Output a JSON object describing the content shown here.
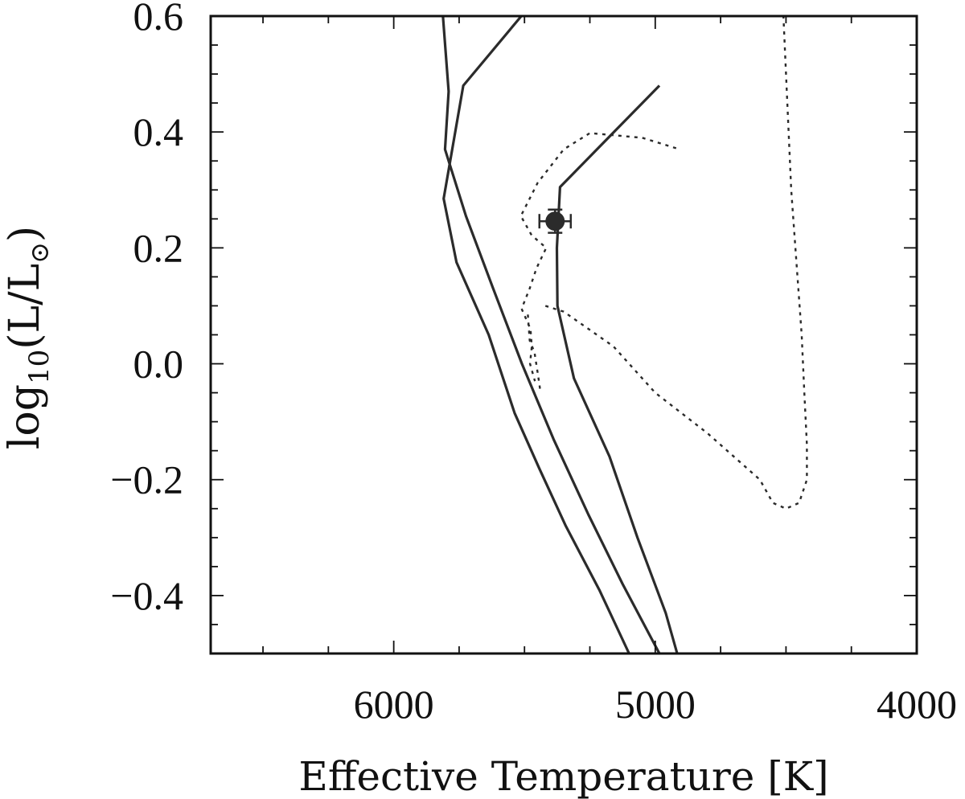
{
  "chart_data": {
    "type": "line",
    "xlabel": "Effective Temperature [K]",
    "ylabel": {
      "prefix": "log",
      "sub1": "10",
      "mid": "(L/L",
      "sub2": "⊙",
      "suffix": ")"
    },
    "xlim": [
      6700,
      4000
    ],
    "ylim": [
      -0.5,
      0.6
    ],
    "x_reversed": true,
    "x_ticks": [
      {
        "value": 6000,
        "label": "6000"
      },
      {
        "value": 5000,
        "label": "5000"
      },
      {
        "value": 4000,
        "label": "4000"
      }
    ],
    "y_ticks": [
      {
        "value": 0.6,
        "label": "0.6"
      },
      {
        "value": 0.4,
        "label": "0.4"
      },
      {
        "value": 0.2,
        "label": "0.2"
      },
      {
        "value": 0.0,
        "label": "0.0"
      },
      {
        "value": -0.2,
        "label": "−0.2"
      },
      {
        "value": -0.4,
        "label": "−0.4"
      }
    ],
    "x_minor_step": 250,
    "y_minor_step": 0.05,
    "grid": false,
    "legend": "none",
    "series": [
      {
        "style": "solid",
        "points": [
          [
            5812,
            0.6
          ],
          [
            5790,
            0.47
          ],
          [
            5804,
            0.37
          ],
          [
            5724,
            0.255
          ],
          [
            5620,
            0.13
          ],
          [
            5510,
            0.0
          ],
          [
            5389,
            -0.13
          ],
          [
            5256,
            -0.26
          ],
          [
            5125,
            -0.38
          ],
          [
            4984,
            -0.5
          ]
        ]
      },
      {
        "style": "solid",
        "points": [
          [
            5512,
            0.6
          ],
          [
            5734,
            0.48
          ],
          [
            5809,
            0.285
          ],
          [
            5760,
            0.175
          ],
          [
            5637,
            0.05
          ],
          [
            5538,
            -0.085
          ],
          [
            5444,
            -0.18
          ],
          [
            5342,
            -0.28
          ],
          [
            5214,
            -0.39
          ],
          [
            5100,
            -0.5
          ]
        ]
      },
      {
        "style": "solid",
        "points": [
          [
            4984,
            0.48
          ],
          [
            5364,
            0.305
          ],
          [
            5376,
            0.2
          ],
          [
            5374,
            0.1
          ],
          [
            5311,
            -0.025
          ],
          [
            5175,
            -0.16
          ],
          [
            5068,
            -0.3
          ],
          [
            4960,
            -0.43
          ],
          [
            4916,
            -0.5
          ]
        ]
      },
      {
        "style": "dotted",
        "points": [
          [
            4920,
            0.372
          ],
          [
            5050,
            0.39
          ],
          [
            5250,
            0.398
          ],
          [
            5350,
            0.37
          ],
          [
            5450,
            0.312
          ],
          [
            5514,
            0.255
          ],
          [
            5473,
            0.222
          ],
          [
            5417,
            0.2
          ],
          [
            5454,
            0.165
          ],
          [
            5480,
            0.13
          ],
          [
            5511,
            0.095
          ],
          [
            5477,
            0.06
          ],
          [
            5472,
            0.03
          ],
          [
            5479,
            0.0
          ],
          [
            5460,
            -0.03
          ]
        ]
      },
      {
        "style": "dotted",
        "points": [
          [
            5420,
            0.1
          ],
          [
            5350,
            0.09
          ],
          [
            5160,
            0.03
          ],
          [
            5000,
            -0.05
          ],
          [
            4800,
            -0.12
          ],
          [
            4600,
            -0.2
          ],
          [
            4550,
            -0.24
          ],
          [
            4500,
            -0.25
          ],
          [
            4450,
            -0.24
          ],
          [
            4420,
            -0.2
          ],
          [
            4420,
            -0.14
          ],
          [
            4430,
            -0.05
          ],
          [
            4440,
            0.05
          ],
          [
            4480,
            0.3
          ],
          [
            4510,
            0.6
          ]
        ]
      },
      {
        "style": "dotted",
        "points": [
          [
            5487,
            0.085
          ],
          [
            5480,
            0.04
          ],
          [
            5462,
            0.02
          ],
          [
            5448,
            -0.02
          ],
          [
            5440,
            -0.045
          ]
        ]
      }
    ],
    "points": [
      {
        "x": 5383,
        "y": 0.246,
        "xerr": 60,
        "yerr": 0.02,
        "marker": "filled-circle"
      }
    ]
  }
}
